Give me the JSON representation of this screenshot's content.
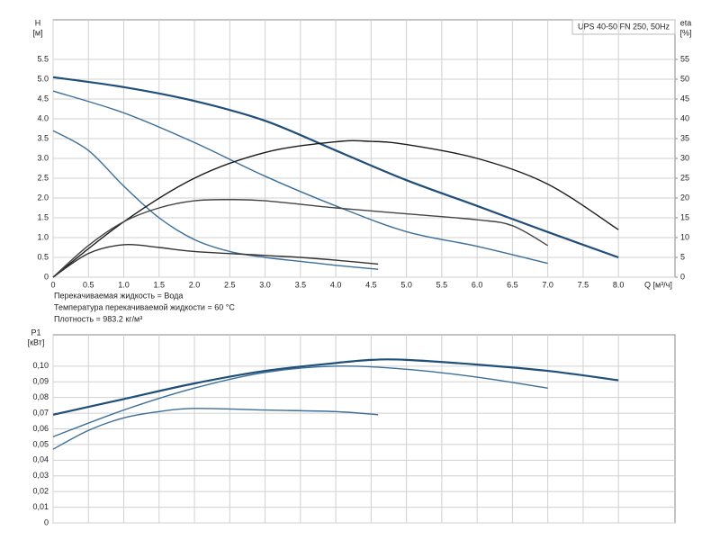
{
  "chart_data": [
    {
      "type": "line",
      "title": "UPS 40-50 FN 250, 50Hz",
      "ylabel": "H",
      "yunit": "[м]",
      "y2label": "eta",
      "y2unit": "[%]",
      "xlabel": "Q [м³/ч]",
      "notes": [
        "Перекачиваемая жидкость = Вода",
        "Температура перекачиваемой жидкости = 60 °C",
        "Плотность = 983.2 кг/м³"
      ],
      "xlim": [
        0,
        8.8
      ],
      "xticks": [
        0,
        0.5,
        {
          "value": 1,
          "label": "1.0"
        },
        1.5,
        {
          "value": 2,
          "label": "2.0"
        },
        2.5,
        {
          "value": 3,
          "label": "3.0"
        },
        3.5,
        {
          "value": 4,
          "label": "4.0"
        },
        4.5,
        {
          "value": 5,
          "label": "5.0"
        },
        5.5,
        {
          "value": 6,
          "label": "6.0"
        },
        6.5,
        {
          "value": 7,
          "label": "7.0"
        },
        7.5,
        {
          "value": 8,
          "label": "8.0"
        }
      ],
      "ylim": [
        0,
        6.5
      ],
      "yticks": [
        0,
        0.5,
        {
          "value": 1,
          "label": "1.0"
        },
        1.5,
        {
          "value": 2,
          "label": "2.0"
        },
        2.5,
        {
          "value": 3,
          "label": "3.0"
        },
        3.5,
        {
          "value": 4,
          "label": "4.0"
        },
        4.5,
        {
          "value": 5,
          "label": "5.0"
        },
        5.5
      ],
      "y2lim": [
        0,
        65
      ],
      "y2ticks": [
        0,
        5,
        10,
        15,
        20,
        25,
        30,
        35,
        40,
        45,
        50,
        55
      ],
      "grid": true,
      "series": [
        {
          "color": "#1f4e79",
          "x": [
            0,
            1,
            2,
            3,
            4,
            5,
            6,
            7,
            8
          ],
          "values": [
            5.05,
            4.8,
            4.45,
            3.95,
            3.2,
            2.45,
            1.8,
            1.14,
            0.5
          ]
        },
        {
          "color": "#3b6e98",
          "x": [
            0,
            1,
            2,
            3,
            4,
            5,
            6,
            7
          ],
          "values": [
            4.7,
            4.15,
            3.4,
            2.55,
            1.8,
            1.15,
            0.78,
            0.35
          ]
        },
        {
          "color": "#3b6e98",
          "x": [
            0,
            0.5,
            1,
            1.5,
            2,
            2.5,
            3,
            3.5,
            4,
            4.6
          ],
          "values": [
            3.7,
            3.2,
            2.3,
            1.5,
            0.95,
            0.65,
            0.5,
            0.4,
            0.3,
            0.2
          ]
        },
        {
          "color": "#1a1a1a",
          "axis": "y2",
          "x": [
            0,
            1,
            2,
            3,
            4,
            4.5,
            5,
            6,
            7,
            8
          ],
          "values": [
            0,
            14,
            25,
            31.5,
            34.2,
            34.3,
            33.5,
            30,
            23.5,
            12
          ]
        },
        {
          "color": "#444444",
          "axis": "y2",
          "x": [
            0,
            0.5,
            1,
            1.5,
            2,
            2.5,
            3,
            4,
            5,
            6,
            6.5,
            7
          ],
          "values": [
            0,
            8,
            14,
            17.5,
            19.3,
            19.6,
            19.3,
            17.5,
            16,
            14.5,
            13,
            8
          ]
        },
        {
          "color": "#333333",
          "axis": "y2",
          "x": [
            0,
            0.5,
            1,
            1.5,
            2,
            3,
            3.5,
            4,
            4.6
          ],
          "values": [
            0,
            6,
            8.2,
            7.5,
            6.5,
            5.5,
            5,
            4.3,
            3.3
          ]
        }
      ]
    },
    {
      "type": "line",
      "ylabel": "P1",
      "yunit": "[кВт]",
      "xlim": [
        0,
        8.8
      ],
      "xticks": [
        0,
        0.5,
        1,
        1.5,
        2,
        2.5,
        3,
        3.5,
        4,
        4.5,
        5,
        5.5,
        6,
        6.5,
        7,
        7.5,
        8
      ],
      "ylim": [
        0,
        0.12
      ],
      "yticks": [
        0,
        {
          "value": 0.01,
          "label": "0,01"
        },
        {
          "value": 0.02,
          "label": "0,02"
        },
        {
          "value": 0.03,
          "label": "0,03"
        },
        {
          "value": 0.04,
          "label": "0,04"
        },
        {
          "value": 0.05,
          "label": "0,05"
        },
        {
          "value": 0.06,
          "label": "0,06"
        },
        {
          "value": 0.07,
          "label": "0,07"
        },
        {
          "value": 0.08,
          "label": "0,08"
        },
        {
          "value": 0.09,
          "label": "0,09"
        },
        {
          "value": 0.1,
          "label": "0,10"
        }
      ],
      "grid": true,
      "series": [
        {
          "color": "#1f4e79",
          "x": [
            0,
            1,
            2,
            3,
            4,
            4.5,
            5,
            6,
            7,
            8
          ],
          "values": [
            0.069,
            0.079,
            0.089,
            0.097,
            0.102,
            0.104,
            0.104,
            0.101,
            0.097,
            0.091
          ]
        },
        {
          "color": "#3b6e98",
          "x": [
            0,
            1,
            2,
            3,
            4,
            5,
            6,
            7
          ],
          "values": [
            0.055,
            0.072,
            0.086,
            0.096,
            0.1,
            0.098,
            0.093,
            0.086
          ]
        },
        {
          "color": "#3b6e98",
          "x": [
            0,
            0.5,
            1,
            1.5,
            2,
            3,
            4,
            4.6
          ],
          "values": [
            0.047,
            0.059,
            0.067,
            0.071,
            0.073,
            0.072,
            0.071,
            0.069
          ]
        }
      ]
    }
  ]
}
